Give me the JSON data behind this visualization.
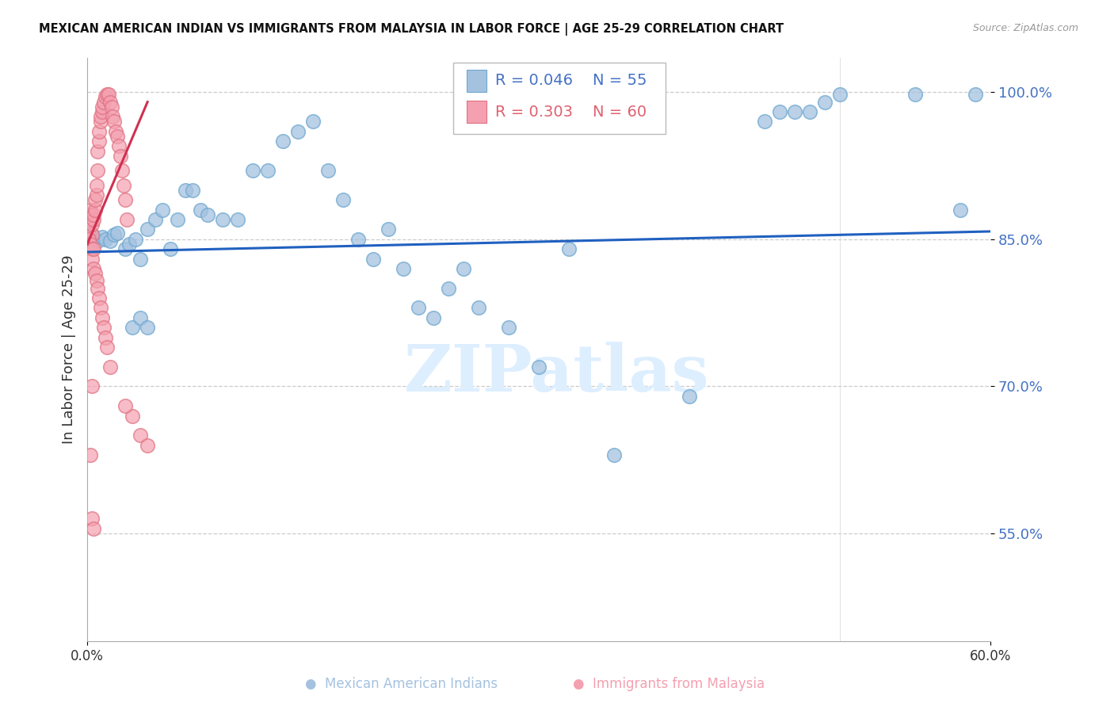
{
  "title": "MEXICAN AMERICAN INDIAN VS IMMIGRANTS FROM MALAYSIA IN LABOR FORCE | AGE 25-29 CORRELATION CHART",
  "source": "Source: ZipAtlas.com",
  "ylabel": "In Labor Force | Age 25-29",
  "xlim_min": 0.0,
  "xlim_max": 0.6,
  "ylim_min": 0.44,
  "ylim_max": 1.035,
  "ytick_positions": [
    0.55,
    0.7,
    0.85,
    1.0
  ],
  "ytick_labels": [
    "55.0%",
    "70.0%",
    "85.0%",
    "100.0%"
  ],
  "xtick_positions": [
    0.0,
    0.6
  ],
  "xtick_labels": [
    "0.0%",
    "60.0%"
  ],
  "blue_color": "#a4c2e0",
  "pink_color": "#f4a0b0",
  "blue_edge_color": "#6fa8d0",
  "pink_edge_color": "#e07080",
  "blue_line_color": "#2060c0",
  "pink_line_color": "#d03050",
  "grid_color": "#cccccc",
  "watermark_text": "ZIPatlas",
  "watermark_color": "#ddeeff",
  "legend_R_blue": "R = 0.046",
  "legend_N_blue": "N = 55",
  "legend_R_pink": "R = 0.303",
  "legend_N_pink": "N = 60",
  "legend_blue_label": "Mexican American Indians",
  "legend_pink_label": "Immigrants from Malaysia",
  "blue_x": [
    0.003,
    0.007,
    0.01,
    0.012,
    0.015,
    0.018,
    0.02,
    0.025,
    0.028,
    0.032,
    0.035,
    0.04,
    0.045,
    0.05,
    0.055,
    0.06,
    0.065,
    0.07,
    0.075,
    0.08,
    0.09,
    0.1,
    0.11,
    0.12,
    0.13,
    0.14,
    0.15,
    0.16,
    0.17,
    0.18,
    0.19,
    0.2,
    0.21,
    0.22,
    0.23,
    0.24,
    0.25,
    0.26,
    0.28,
    0.3,
    0.32,
    0.03,
    0.035,
    0.04,
    0.45,
    0.46,
    0.47,
    0.48,
    0.49,
    0.5,
    0.55,
    0.58,
    0.59,
    0.4,
    0.35
  ],
  "blue_y": [
    0.855,
    0.848,
    0.852,
    0.85,
    0.848,
    0.855,
    0.856,
    0.84,
    0.845,
    0.85,
    0.83,
    0.86,
    0.87,
    0.88,
    0.84,
    0.87,
    0.9,
    0.9,
    0.88,
    0.875,
    0.87,
    0.87,
    0.92,
    0.92,
    0.95,
    0.96,
    0.97,
    0.92,
    0.89,
    0.85,
    0.83,
    0.86,
    0.82,
    0.78,
    0.77,
    0.8,
    0.82,
    0.78,
    0.76,
    0.72,
    0.84,
    0.76,
    0.77,
    0.76,
    0.97,
    0.98,
    0.98,
    0.98,
    0.99,
    0.998,
    0.998,
    0.88,
    0.998,
    0.69,
    0.63
  ],
  "pink_x": [
    0.001,
    0.001,
    0.002,
    0.002,
    0.003,
    0.003,
    0.004,
    0.004,
    0.005,
    0.005,
    0.006,
    0.006,
    0.007,
    0.007,
    0.008,
    0.008,
    0.009,
    0.009,
    0.01,
    0.01,
    0.011,
    0.012,
    0.013,
    0.014,
    0.015,
    0.016,
    0.017,
    0.018,
    0.019,
    0.02,
    0.021,
    0.022,
    0.023,
    0.024,
    0.025,
    0.026,
    0.03,
    0.035,
    0.04,
    0.001,
    0.002,
    0.003,
    0.003,
    0.004,
    0.004,
    0.005,
    0.006,
    0.007,
    0.008,
    0.009,
    0.01,
    0.011,
    0.012,
    0.013,
    0.015,
    0.002,
    0.003,
    0.004,
    0.003,
    0.025
  ],
  "pink_y": [
    0.86,
    0.87,
    0.875,
    0.88,
    0.855,
    0.865,
    0.87,
    0.875,
    0.88,
    0.89,
    0.895,
    0.905,
    0.92,
    0.94,
    0.95,
    0.96,
    0.97,
    0.975,
    0.98,
    0.985,
    0.99,
    0.995,
    0.998,
    0.998,
    0.99,
    0.985,
    0.975,
    0.97,
    0.96,
    0.955,
    0.945,
    0.935,
    0.92,
    0.905,
    0.89,
    0.87,
    0.67,
    0.65,
    0.64,
    0.85,
    0.845,
    0.84,
    0.83,
    0.84,
    0.82,
    0.815,
    0.808,
    0.8,
    0.79,
    0.78,
    0.77,
    0.76,
    0.75,
    0.74,
    0.72,
    0.63,
    0.565,
    0.555,
    0.7,
    0.68
  ],
  "blue_trend_x0": 0.0,
  "blue_trend_x1": 0.6,
  "blue_trend_y0": 0.837,
  "blue_trend_y1": 0.858,
  "pink_trend_x0": 0.0,
  "pink_trend_x1": 0.04,
  "pink_trend_y0": 0.845,
  "pink_trend_y1": 0.99
}
